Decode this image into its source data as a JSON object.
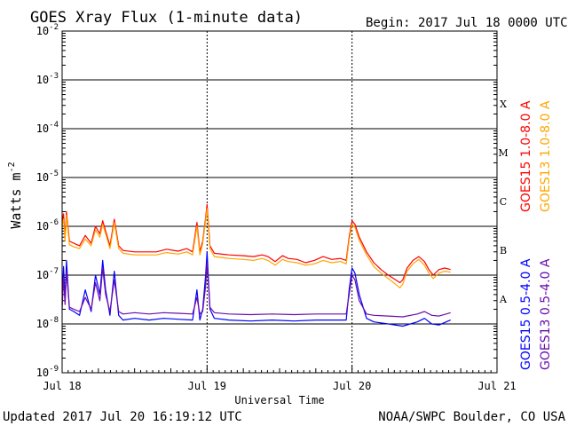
{
  "header": {
    "title": "GOES Xray Flux (1-minute data)",
    "begin": "Begin:  2017 Jul 18 0000 UTC"
  },
  "footer": {
    "updated": "Updated 2017 Jul 20 16:19:12 UTC",
    "source": "NOAA/SWPC Boulder, CO USA"
  },
  "chart_data": {
    "type": "line",
    "title": "GOES Xray Flux (1-minute data)",
    "xlabel": "Universal Time",
    "ylabel": "Watts m",
    "ylabel_sup": "-2",
    "yscale": "log",
    "ylim": [
      1e-09,
      0.01
    ],
    "xlim": [
      0,
      3
    ],
    "x_unit": "days since Jul 18 0000 UTC",
    "x_ticks": [
      {
        "x": 0,
        "label": "Jul 18"
      },
      {
        "x": 1,
        "label": "Jul 19"
      },
      {
        "x": 2,
        "label": "Jul 20"
      },
      {
        "x": 3,
        "label": "Jul 21"
      }
    ],
    "y_ticks": [
      {
        "exp": -2,
        "label": "10",
        "sup": "-2"
      },
      {
        "exp": -3,
        "label": "10",
        "sup": "-3"
      },
      {
        "exp": -4,
        "label": "10",
        "sup": "-4"
      },
      {
        "exp": -5,
        "label": "10",
        "sup": "-5"
      },
      {
        "exp": -6,
        "label": "10",
        "sup": "-6"
      },
      {
        "exp": -7,
        "label": "10",
        "sup": "-7"
      },
      {
        "exp": -8,
        "label": "10",
        "sup": "-8"
      },
      {
        "exp": -9,
        "label": "10",
        "sup": "-9"
      }
    ],
    "flare_classes": [
      {
        "label": "X",
        "exp": -4
      },
      {
        "label": "M",
        "exp": -5
      },
      {
        "label": "C",
        "exp": -6
      },
      {
        "label": "B",
        "exp": -7
      },
      {
        "label": "A",
        "exp": -8
      }
    ],
    "grid": "horizontal at each decade 1e-3 to 1e-8; dotted verticals at day boundaries",
    "series": [
      {
        "name": "GOES15 1.0-8.0 A",
        "color": "#ff0000",
        "points": [
          [
            0,
            1.2e-06
          ],
          [
            0.01,
            1.8e-06
          ],
          [
            0.02,
            6e-07
          ],
          [
            0.03,
            2e-06
          ],
          [
            0.05,
            5e-07
          ],
          [
            0.08,
            4.5e-07
          ],
          [
            0.12,
            4e-07
          ],
          [
            0.16,
            6.5e-07
          ],
          [
            0.2,
            4.5e-07
          ],
          [
            0.23,
            1e-06
          ],
          [
            0.26,
            7e-07
          ],
          [
            0.28,
            1.3e-06
          ],
          [
            0.3,
            8e-07
          ],
          [
            0.33,
            4e-07
          ],
          [
            0.36,
            1.4e-06
          ],
          [
            0.39,
            4e-07
          ],
          [
            0.42,
            3.2e-07
          ],
          [
            0.5,
            3e-07
          ],
          [
            0.58,
            3e-07
          ],
          [
            0.65,
            3e-07
          ],
          [
            0.72,
            3.4e-07
          ],
          [
            0.8,
            3.1e-07
          ],
          [
            0.86,
            3.5e-07
          ],
          [
            0.9,
            3e-07
          ],
          [
            0.93,
            1.2e-06
          ],
          [
            0.95,
            3e-07
          ],
          [
            0.97,
            5e-07
          ],
          [
            0.99,
            1.5e-06
          ],
          [
            1.0,
            2.8e-06
          ],
          [
            1.02,
            4e-07
          ],
          [
            1.05,
            2.8e-07
          ],
          [
            1.15,
            2.6e-07
          ],
          [
            1.25,
            2.5e-07
          ],
          [
            1.32,
            2.4e-07
          ],
          [
            1.38,
            2.6e-07
          ],
          [
            1.42,
            2.4e-07
          ],
          [
            1.47,
            1.9e-07
          ],
          [
            1.52,
            2.5e-07
          ],
          [
            1.56,
            2.2e-07
          ],
          [
            1.62,
            2.1e-07
          ],
          [
            1.68,
            1.8e-07
          ],
          [
            1.74,
            2e-07
          ],
          [
            1.8,
            2.4e-07
          ],
          [
            1.86,
            2.1e-07
          ],
          [
            1.92,
            2.2e-07
          ],
          [
            1.96,
            2e-07
          ],
          [
            1.98,
            6e-07
          ],
          [
            2.0,
            1.3e-06
          ],
          [
            2.02,
            1.1e-06
          ],
          [
            2.05,
            6e-07
          ],
          [
            2.1,
            3e-07
          ],
          [
            2.15,
            1.8e-07
          ],
          [
            2.2,
            1.3e-07
          ],
          [
            2.25,
            1e-07
          ],
          [
            2.3,
            8e-08
          ],
          [
            2.33,
            7e-08
          ],
          [
            2.35,
            8e-08
          ],
          [
            2.38,
            1.4e-07
          ],
          [
            2.42,
            2e-07
          ],
          [
            2.46,
            2.4e-07
          ],
          [
            2.5,
            1.9e-07
          ],
          [
            2.53,
            1.3e-07
          ],
          [
            2.56,
            1e-07
          ],
          [
            2.6,
            1.3e-07
          ],
          [
            2.64,
            1.4e-07
          ],
          [
            2.68,
            1.3e-07
          ]
        ]
      },
      {
        "name": "GOES13 1.0-8.0 A",
        "color": "#ffa500",
        "points": [
          [
            0,
            1e-06
          ],
          [
            0.01,
            1.4e-06
          ],
          [
            0.02,
            5e-07
          ],
          [
            0.03,
            1.7e-06
          ],
          [
            0.05,
            4.2e-07
          ],
          [
            0.08,
            3.8e-07
          ],
          [
            0.12,
            3.5e-07
          ],
          [
            0.16,
            5.5e-07
          ],
          [
            0.2,
            4e-07
          ],
          [
            0.23,
            8.5e-07
          ],
          [
            0.26,
            6e-07
          ],
          [
            0.28,
            1.1e-06
          ],
          [
            0.3,
            7e-07
          ],
          [
            0.33,
            3.5e-07
          ],
          [
            0.36,
            1.2e-06
          ],
          [
            0.39,
            3.5e-07
          ],
          [
            0.42,
            2.8e-07
          ],
          [
            0.5,
            2.6e-07
          ],
          [
            0.58,
            2.6e-07
          ],
          [
            0.65,
            2.6e-07
          ],
          [
            0.72,
            2.9e-07
          ],
          [
            0.8,
            2.7e-07
          ],
          [
            0.86,
            3e-07
          ],
          [
            0.9,
            2.6e-07
          ],
          [
            0.93,
            1e-06
          ],
          [
            0.95,
            2.6e-07
          ],
          [
            0.97,
            4.4e-07
          ],
          [
            0.99,
            1.3e-06
          ],
          [
            1.0,
            2.3e-06
          ],
          [
            1.02,
            3.5e-07
          ],
          [
            1.05,
            2.4e-07
          ],
          [
            1.15,
            2.2e-07
          ],
          [
            1.25,
            2.1e-07
          ],
          [
            1.32,
            2e-07
          ],
          [
            1.38,
            2.2e-07
          ],
          [
            1.42,
            2e-07
          ],
          [
            1.47,
            1.6e-07
          ],
          [
            1.52,
            2.1e-07
          ],
          [
            1.56,
            1.9e-07
          ],
          [
            1.62,
            1.8e-07
          ],
          [
            1.68,
            1.6e-07
          ],
          [
            1.74,
            1.7e-07
          ],
          [
            1.8,
            2e-07
          ],
          [
            1.86,
            1.8e-07
          ],
          [
            1.92,
            1.9e-07
          ],
          [
            1.96,
            1.7e-07
          ],
          [
            1.98,
            5.2e-07
          ],
          [
            2.0,
            1.1e-06
          ],
          [
            2.02,
            9.5e-07
          ],
          [
            2.05,
            5.2e-07
          ],
          [
            2.1,
            2.6e-07
          ],
          [
            2.15,
            1.5e-07
          ],
          [
            2.2,
            1.1e-07
          ],
          [
            2.25,
            8.5e-08
          ],
          [
            2.3,
            6.5e-08
          ],
          [
            2.33,
            5.5e-08
          ],
          [
            2.35,
            6.5e-08
          ],
          [
            2.38,
            1.2e-07
          ],
          [
            2.42,
            1.7e-07
          ],
          [
            2.46,
            2.1e-07
          ],
          [
            2.5,
            1.6e-07
          ],
          [
            2.53,
            1.1e-07
          ],
          [
            2.56,
            8.5e-08
          ],
          [
            2.6,
            1.1e-07
          ],
          [
            2.64,
            1.2e-07
          ],
          [
            2.68,
            1.15e-07
          ]
        ]
      },
      {
        "name": "GOES15 0.5-4.0 A",
        "color": "#0000ff",
        "points": [
          [
            0,
            2.5e-08
          ],
          [
            0.01,
            1.5e-07
          ],
          [
            0.02,
            3e-08
          ],
          [
            0.03,
            2e-07
          ],
          [
            0.05,
            2e-08
          ],
          [
            0.08,
            1.8e-08
          ],
          [
            0.12,
            1.5e-08
          ],
          [
            0.16,
            5e-08
          ],
          [
            0.2,
            1.8e-08
          ],
          [
            0.23,
            1e-07
          ],
          [
            0.26,
            4e-08
          ],
          [
            0.28,
            2e-07
          ],
          [
            0.3,
            5e-08
          ],
          [
            0.33,
            1.5e-08
          ],
          [
            0.36,
            1.2e-07
          ],
          [
            0.39,
            1.5e-08
          ],
          [
            0.42,
            1.2e-08
          ],
          [
            0.5,
            1.3e-08
          ],
          [
            0.6,
            1.2e-08
          ],
          [
            0.7,
            1.3e-08
          ],
          [
            0.8,
            1.25e-08
          ],
          [
            0.9,
            1.2e-08
          ],
          [
            0.93,
            5e-08
          ],
          [
            0.95,
            1.2e-08
          ],
          [
            0.97,
            2e-08
          ],
          [
            0.99,
            1e-07
          ],
          [
            1.0,
            3e-07
          ],
          [
            1.02,
            2e-08
          ],
          [
            1.05,
            1.3e-08
          ],
          [
            1.15,
            1.2e-08
          ],
          [
            1.3,
            1.15e-08
          ],
          [
            1.45,
            1.2e-08
          ],
          [
            1.6,
            1.15e-08
          ],
          [
            1.75,
            1.2e-08
          ],
          [
            1.9,
            1.2e-08
          ],
          [
            1.96,
            1.2e-08
          ],
          [
            1.98,
            5e-08
          ],
          [
            2.0,
            1.4e-07
          ],
          [
            2.02,
            1.1e-07
          ],
          [
            2.05,
            4e-08
          ],
          [
            2.1,
            1.3e-08
          ],
          [
            2.15,
            1.1e-08
          ],
          [
            2.25,
            1e-08
          ],
          [
            2.35,
            9e-09
          ],
          [
            2.45,
            1.1e-08
          ],
          [
            2.5,
            1.3e-08
          ],
          [
            2.55,
            1e-08
          ],
          [
            2.6,
            9.5e-09
          ],
          [
            2.65,
            1.1e-08
          ],
          [
            2.68,
            1.2e-08
          ]
        ]
      },
      {
        "name": "GOES13 0.5-4.0 A",
        "color": "#6a0dad",
        "points": [
          [
            0,
            2e-08
          ],
          [
            0.01,
            9e-08
          ],
          [
            0.02,
            2.5e-08
          ],
          [
            0.03,
            1.2e-07
          ],
          [
            0.05,
            2.2e-08
          ],
          [
            0.08,
            2e-08
          ],
          [
            0.12,
            1.8e-08
          ],
          [
            0.16,
            3.5e-08
          ],
          [
            0.2,
            2e-08
          ],
          [
            0.23,
            7e-08
          ],
          [
            0.26,
            3e-08
          ],
          [
            0.28,
            1.4e-07
          ],
          [
            0.3,
            4e-08
          ],
          [
            0.33,
            1.8e-08
          ],
          [
            0.36,
            8e-08
          ],
          [
            0.39,
            1.8e-08
          ],
          [
            0.42,
            1.6e-08
          ],
          [
            0.5,
            1.7e-08
          ],
          [
            0.6,
            1.6e-08
          ],
          [
            0.7,
            1.7e-08
          ],
          [
            0.8,
            1.65e-08
          ],
          [
            0.9,
            1.6e-08
          ],
          [
            0.93,
            3.5e-08
          ],
          [
            0.95,
            1.6e-08
          ],
          [
            0.97,
            1.8e-08
          ],
          [
            0.99,
            6e-08
          ],
          [
            1.0,
            1.8e-07
          ],
          [
            1.02,
            2.2e-08
          ],
          [
            1.05,
            1.7e-08
          ],
          [
            1.15,
            1.6e-08
          ],
          [
            1.3,
            1.55e-08
          ],
          [
            1.45,
            1.6e-08
          ],
          [
            1.6,
            1.55e-08
          ],
          [
            1.75,
            1.6e-08
          ],
          [
            1.9,
            1.6e-08
          ],
          [
            1.96,
            1.6e-08
          ],
          [
            1.98,
            4e-08
          ],
          [
            2.0,
            1e-07
          ],
          [
            2.02,
            8e-08
          ],
          [
            2.05,
            3e-08
          ],
          [
            2.1,
            1.6e-08
          ],
          [
            2.15,
            1.5e-08
          ],
          [
            2.25,
            1.45e-08
          ],
          [
            2.35,
            1.4e-08
          ],
          [
            2.45,
            1.6e-08
          ],
          [
            2.5,
            1.8e-08
          ],
          [
            2.55,
            1.5e-08
          ],
          [
            2.6,
            1.45e-08
          ],
          [
            2.65,
            1.6e-08
          ],
          [
            2.68,
            1.7e-08
          ]
        ]
      }
    ]
  }
}
